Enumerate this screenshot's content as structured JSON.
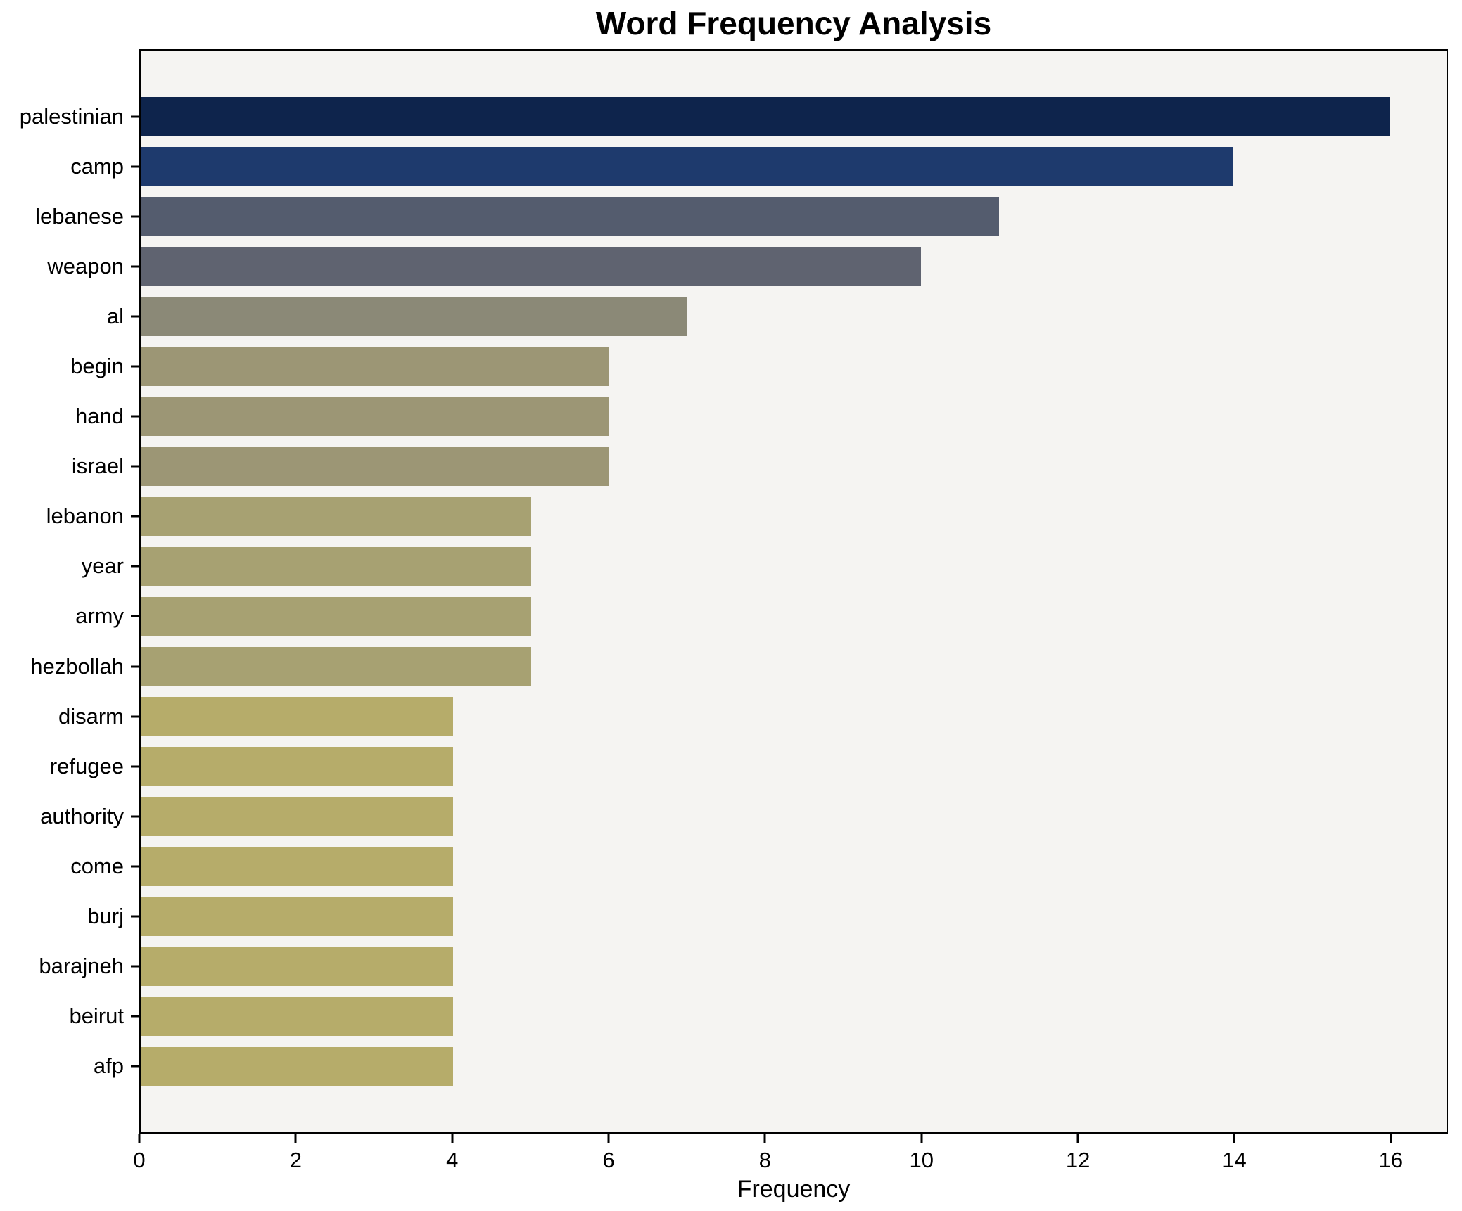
{
  "chart_data": {
    "type": "bar",
    "orientation": "horizontal",
    "title": "Word Frequency Analysis",
    "xlabel": "Frequency",
    "ylabel": "",
    "categories": [
      "palestinian",
      "camp",
      "lebanese",
      "weapon",
      "al",
      "begin",
      "hand",
      "israel",
      "lebanon",
      "year",
      "army",
      "hezbollah",
      "disarm",
      "refugee",
      "authority",
      "come",
      "burj",
      "barajneh",
      "beirut",
      "afp"
    ],
    "values": [
      16,
      14,
      11,
      10,
      7,
      6,
      6,
      6,
      5,
      5,
      5,
      5,
      4,
      4,
      4,
      4,
      4,
      4,
      4,
      4
    ],
    "bar_colors": [
      "#0e244c",
      "#1e3a6d",
      "#545c6e",
      "#5f6370",
      "#8b8977",
      "#9c9675",
      "#9c9675",
      "#9c9675",
      "#a7a172",
      "#a7a172",
      "#a7a172",
      "#a7a172",
      "#b6ac6a",
      "#b6ac6a",
      "#b6ac6a",
      "#b6ac6a",
      "#b6ac6a",
      "#b6ac6a",
      "#b6ac6a",
      "#b6ac6a"
    ],
    "xticks": [
      0,
      2,
      4,
      6,
      8,
      10,
      12,
      14,
      16
    ],
    "xlim": [
      0,
      16.73
    ],
    "grid": "off",
    "legend": "none",
    "plot_background": "#f5f4f2",
    "axis_color": "#000000"
  }
}
